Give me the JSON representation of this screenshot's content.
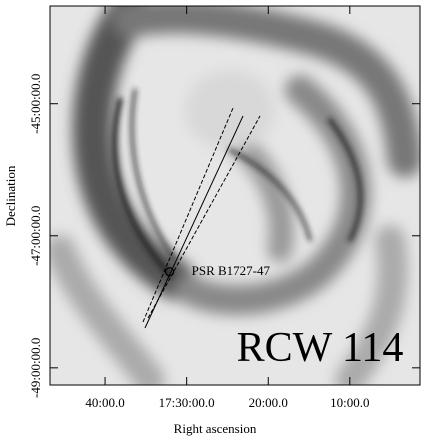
{
  "chart_data": {
    "type": "image",
    "xlabel": "Right ascension",
    "ylabel": "Declination",
    "xlim": [
      17.7792,
      17.0233
    ],
    "ylim": [
      -49.26,
      -43.52
    ],
    "xticks": [
      {
        "value": 17.6667,
        "label": "40:00.0"
      },
      {
        "value": 17.5,
        "label": "17:30:00.0"
      },
      {
        "value": 17.3333,
        "label": "20:00.0"
      },
      {
        "value": 17.1667,
        "label": "10:00.0"
      }
    ],
    "yticks": [
      {
        "value": -45,
        "label": "-45:00:00.0"
      },
      {
        "value": -47,
        "label": "-47:00:00.0"
      },
      {
        "value": -49,
        "label": "-49:00:00.0"
      }
    ],
    "points": [
      {
        "name": "PSR B1727-47",
        "x": 17.5348,
        "y": -47.545
      }
    ],
    "annotation": "RCW 114"
  }
}
